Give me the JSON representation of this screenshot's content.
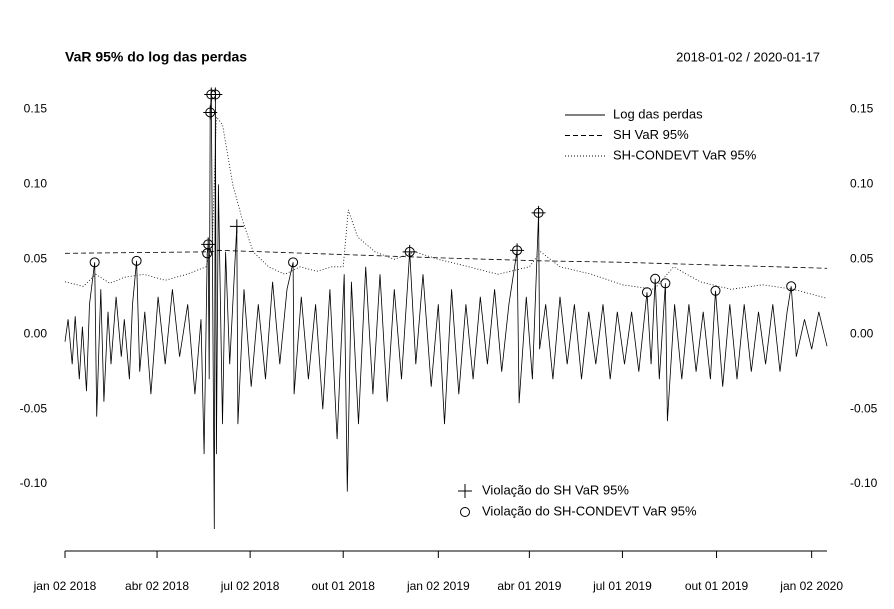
{
  "chart_data": {
    "type": "line",
    "title": "VaR 95% do log das perdas",
    "subtitle": "2018-01-02 / 2020-01-17",
    "xlim": [
      "2018-01-02",
      "2020-01-17"
    ],
    "xticks": [
      {
        "value": "2018-01-02",
        "label": "jan 02 2018"
      },
      {
        "value": "2018-04-02",
        "label": "abr 02 2018"
      },
      {
        "value": "2018-07-02",
        "label": "jul 02 2018"
      },
      {
        "value": "2018-10-01",
        "label": "out 01 2018"
      },
      {
        "value": "2019-01-02",
        "label": "jan 02 2019"
      },
      {
        "value": "2019-04-01",
        "label": "abr 01 2019"
      },
      {
        "value": "2019-07-01",
        "label": "jul 01 2019"
      },
      {
        "value": "2019-10-01",
        "label": "out 01 2019"
      },
      {
        "value": "2020-01-02",
        "label": "jan 02 2020"
      }
    ],
    "ylim": [
      -0.144,
      0.161
    ],
    "yticks": [
      {
        "value": -0.1,
        "label": "-0.10"
      },
      {
        "value": -0.05,
        "label": "-0.05"
      },
      {
        "value": 0,
        "label": "0.00"
      },
      {
        "value": 0.05,
        "label": "0.05"
      },
      {
        "value": 0.1,
        "label": "0.10"
      },
      0.15
    ],
    "series": [
      {
        "name": "Log das perdas",
        "color": "#000000",
        "dash": "solid",
        "x": [
          "2018-01-02",
          "2018-01-05",
          "2018-01-09",
          "2018-01-12",
          "2018-01-16",
          "2018-01-19",
          "2018-01-23",
          "2018-01-26",
          "2018-01-31",
          "2018-02-02",
          "2018-02-06",
          "2018-02-09",
          "2018-02-13",
          "2018-02-16",
          "2018-02-21",
          "2018-02-26",
          "2018-03-01",
          "2018-03-06",
          "2018-03-09",
          "2018-03-13",
          "2018-03-16",
          "2018-03-21",
          "2018-03-27",
          "2018-04-03",
          "2018-04-10",
          "2018-04-17",
          "2018-04-24",
          "2018-05-02",
          "2018-05-09",
          "2018-05-15",
          "2018-05-18",
          "2018-05-21",
          "2018-05-22",
          "2018-05-23",
          "2018-05-24",
          "2018-05-25",
          "2018-05-28",
          "2018-05-29",
          "2018-05-30",
          "2018-06-01",
          "2018-06-05",
          "2018-06-08",
          "2018-06-12",
          "2018-06-19",
          "2018-06-20",
          "2018-06-26",
          "2018-07-03",
          "2018-07-10",
          "2018-07-17",
          "2018-07-24",
          "2018-07-31",
          "2018-08-07",
          "2018-08-13",
          "2018-08-14",
          "2018-08-21",
          "2018-08-28",
          "2018-09-04",
          "2018-09-11",
          "2018-09-18",
          "2018-09-25",
          "2018-10-02",
          "2018-10-05",
          "2018-10-09",
          "2018-10-16",
          "2018-10-23",
          "2018-10-30",
          "2018-11-06",
          "2018-11-13",
          "2018-11-20",
          "2018-11-27",
          "2018-12-05",
          "2018-12-11",
          "2018-12-18",
          "2018-12-26",
          "2019-01-02",
          "2019-01-08",
          "2019-01-15",
          "2019-01-22",
          "2019-01-29",
          "2019-02-05",
          "2019-02-12",
          "2019-02-19",
          "2019-02-26",
          "2019-03-05",
          "2019-03-12",
          "2019-03-20",
          "2019-03-22",
          "2019-03-29",
          "2019-04-04",
          "2019-04-10",
          "2019-04-11",
          "2019-04-17",
          "2019-04-24",
          "2019-05-01",
          "2019-05-08",
          "2019-05-15",
          "2019-05-22",
          "2019-05-29",
          "2019-06-05",
          "2019-06-12",
          "2019-06-19",
          "2019-06-26",
          "2019-07-03",
          "2019-07-10",
          "2019-07-17",
          "2019-07-25",
          "2019-07-29",
          "2019-08-02",
          "2019-08-06",
          "2019-08-12",
          "2019-08-14",
          "2019-08-21",
          "2019-08-28",
          "2019-09-04",
          "2019-09-11",
          "2019-09-18",
          "2019-09-25",
          "2019-09-30",
          "2019-10-07",
          "2019-10-14",
          "2019-10-21",
          "2019-10-28",
          "2019-11-04",
          "2019-11-11",
          "2019-11-18",
          "2019-11-25",
          "2019-12-02",
          "2019-12-09",
          "2019-12-13",
          "2019-12-18",
          "2019-12-26",
          "2020-01-02",
          "2020-01-09",
          "2020-01-17"
        ],
        "values": [
          -0.005,
          0.01,
          -0.02,
          0.012,
          -0.03,
          0.005,
          -0.038,
          0.02,
          0.048,
          -0.055,
          0.03,
          -0.045,
          0.015,
          -0.02,
          0.025,
          -0.015,
          0.01,
          -0.03,
          0.02,
          0.049,
          -0.025,
          0.015,
          -0.04,
          0.025,
          -0.02,
          0.03,
          -0.015,
          0.02,
          -0.04,
          0.01,
          -0.08,
          0.054,
          0.06,
          -0.03,
          0.148,
          0.16,
          -0.13,
          0.16,
          -0.08,
          0.1,
          -0.06,
          0.055,
          -0.02,
          0.072,
          -0.06,
          0.03,
          -0.035,
          0.02,
          -0.03,
          0.035,
          -0.02,
          0.03,
          0.048,
          -0.04,
          0.025,
          -0.03,
          0.02,
          -0.05,
          0.03,
          -0.07,
          0.04,
          -0.105,
          0.035,
          -0.06,
          0.045,
          -0.04,
          0.04,
          -0.045,
          0.03,
          -0.03,
          0.055,
          -0.02,
          0.04,
          -0.035,
          0.02,
          -0.06,
          0.03,
          -0.04,
          0.02,
          -0.03,
          0.025,
          -0.02,
          0.03,
          -0.025,
          0.02,
          0.056,
          -0.046,
          0.025,
          -0.03,
          0.081,
          -0.01,
          0.02,
          -0.03,
          0.025,
          -0.02,
          0.02,
          -0.03,
          0.015,
          -0.02,
          0.02,
          -0.03,
          0.015,
          -0.02,
          0.015,
          -0.025,
          0.028,
          -0.02,
          0.037,
          -0.03,
          0.034,
          -0.058,
          0.02,
          -0.03,
          0.02,
          -0.025,
          0.015,
          -0.03,
          0.029,
          -0.035,
          0.02,
          -0.03,
          0.02,
          -0.025,
          0.015,
          -0.02,
          0.02,
          -0.025,
          0.015,
          0.032,
          -0.015,
          0.01,
          -0.01,
          0.015,
          -0.008
        ]
      },
      {
        "name": "SH VaR 95%",
        "color": "#000000",
        "dash": "dashed",
        "x": [
          "2018-01-02",
          "2018-05-25",
          "2018-06-01",
          "2019-01-02",
          "2019-04-10",
          "2019-07-01",
          "2020-01-17"
        ],
        "values": [
          0.054,
          0.055,
          0.056,
          0.051,
          0.049,
          0.048,
          0.044
        ]
      },
      {
        "name": "SH-CONDEVT VaR 95%",
        "color": "#000000",
        "dash": "dotted",
        "x": [
          "2018-01-02",
          "2018-01-20",
          "2018-02-01",
          "2018-02-15",
          "2018-03-01",
          "2018-03-20",
          "2018-04-10",
          "2018-05-01",
          "2018-05-20",
          "2018-05-26",
          "2018-05-30",
          "2018-06-05",
          "2018-06-15",
          "2018-06-25",
          "2018-07-05",
          "2018-07-20",
          "2018-08-05",
          "2018-08-20",
          "2018-09-05",
          "2018-09-20",
          "2018-10-01",
          "2018-10-06",
          "2018-10-15",
          "2018-11-01",
          "2018-11-20",
          "2018-12-10",
          "2019-01-02",
          "2019-02-01",
          "2019-03-01",
          "2019-04-01",
          "2019-04-12",
          "2019-05-01",
          "2019-06-01",
          "2019-07-01",
          "2019-08-01",
          "2019-08-20",
          "2019-09-15",
          "2019-10-15",
          "2019-11-15",
          "2019-12-15",
          "2020-01-17"
        ],
        "values": [
          0.035,
          0.032,
          0.04,
          0.034,
          0.038,
          0.04,
          0.036,
          0.04,
          0.045,
          0.06,
          0.145,
          0.14,
          0.1,
          0.075,
          0.055,
          0.045,
          0.04,
          0.045,
          0.042,
          0.045,
          0.045,
          0.083,
          0.065,
          0.055,
          0.05,
          0.055,
          0.05,
          0.045,
          0.04,
          0.045,
          0.055,
          0.045,
          0.04,
          0.033,
          0.03,
          0.045,
          0.035,
          0.03,
          0.033,
          0.03,
          0.024
        ]
      }
    ],
    "violations": [
      {
        "name": "Violação do SH VaR 95%",
        "marker": "plus",
        "x": [
          "2018-05-22",
          "2018-05-24",
          "2018-05-25",
          "2018-05-29",
          "2018-06-19",
          "2018-12-05",
          "2019-03-20",
          "2019-04-10"
        ],
        "values": [
          0.06,
          0.148,
          0.16,
          0.16,
          0.072,
          0.055,
          0.056,
          0.081
        ]
      },
      {
        "name": "Violação do SH-CONDEVT VaR 95%",
        "marker": "circle",
        "x": [
          "2018-01-31",
          "2018-03-13",
          "2018-05-21",
          "2018-05-22",
          "2018-05-24",
          "2018-05-25",
          "2018-05-29",
          "2018-08-13",
          "2018-12-05",
          "2019-03-20",
          "2019-04-10",
          "2019-07-25",
          "2019-08-02",
          "2019-08-12",
          "2019-09-30",
          "2019-12-13"
        ],
        "values": [
          0.048,
          0.049,
          0.054,
          0.06,
          0.148,
          0.16,
          0.16,
          0.048,
          0.055,
          0.056,
          0.081,
          0.028,
          0.037,
          0.034,
          0.029,
          0.032
        ]
      }
    ]
  }
}
